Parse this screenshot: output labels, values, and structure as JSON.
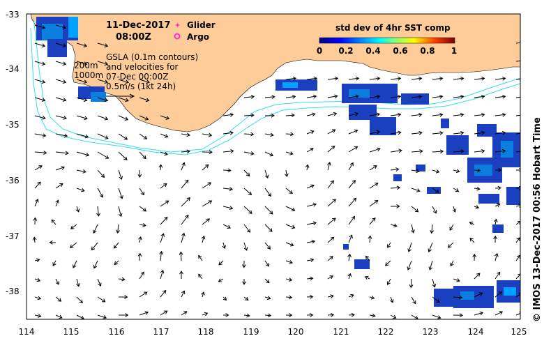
{
  "map": {
    "date": "11-Dec-2017",
    "time": "08:00Z",
    "legend": {
      "glider": "Glider",
      "argo": "Argo"
    },
    "gsla_lines": [
      "GSLA (0.1m contours)",
      "and velocities for",
      "07-Dec 00:00Z",
      "0.5m/s (1kt 24h)"
    ],
    "isobaths": [
      "200m",
      "1000m"
    ],
    "colorbar": {
      "title": "std dev of 4hr SST comp",
      "ticks": [
        "0",
        "0.2",
        "0.4",
        "0.6",
        "0.8",
        "1"
      ]
    },
    "axes": {
      "lon_ticks": [
        "114",
        "115",
        "116",
        "117",
        "118",
        "119",
        "120",
        "121",
        "122",
        "123",
        "124",
        "125"
      ],
      "lat_ticks": [
        "-33",
        "-34",
        "-35",
        "-36",
        "-37",
        "-38"
      ]
    },
    "credit": "© IMOS 13-Dec-2017 00:56 Hobart Time",
    "colors": {
      "land": "#fdcc99",
      "isobath": "#33ddee",
      "sst_low": "#1a3fbf",
      "sst_mid": "#00a0ff",
      "marker": "#ff33cc"
    }
  }
}
